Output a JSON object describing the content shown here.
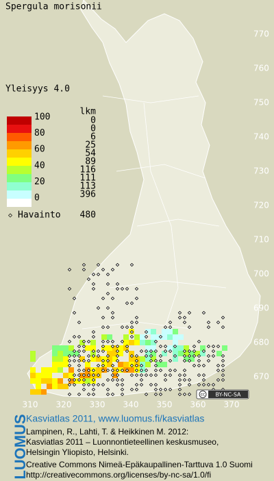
{
  "title": "Spergula morisonii",
  "grid": {
    "y_labels": [
      770,
      760,
      750,
      740,
      730,
      720,
      710,
      700,
      690,
      680,
      670
    ],
    "x_labels": [
      310,
      320,
      330,
      340,
      350,
      360,
      370
    ]
  },
  "legend": {
    "title": "Yleisyys 4.0",
    "scale_labels": [
      100,
      80,
      60,
      40,
      20,
      0
    ],
    "count_header": "lkm",
    "counts": [
      0,
      0,
      6,
      25,
      54,
      89,
      116,
      111,
      113,
      396
    ]
  },
  "observations": {
    "label": "Havainto",
    "count": 480
  },
  "license_badge": "BY-NC-SA",
  "logo": "LUOMUS",
  "footer": {
    "heading": "Kasviatlas 2011, www.luomus.fi/kasviatlas",
    "lines": [
      "Lampinen, R., Lahti, T. & Heikkinen M. 2012:",
      "Kasviatlas 2011 – Luonnontieteellinen keskusmuseo,",
      "Helsingin Yliopisto, Helsinki."
    ],
    "license_lines": [
      "Creative Commons Nimeä-Epäkaupallinen-Tarttuva 1.0 Suomi",
      "http://creativecommons.org/licenses/by-nc-sa/1.0/fi"
    ]
  }
}
